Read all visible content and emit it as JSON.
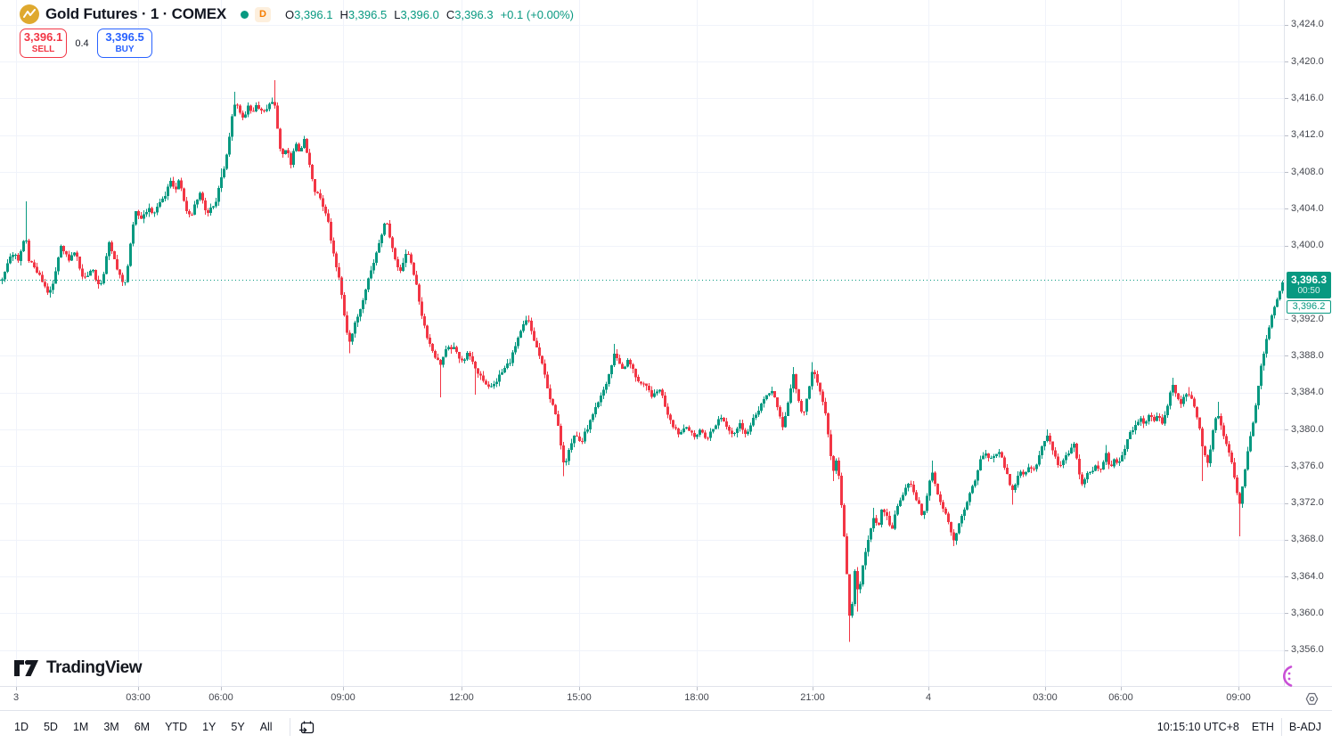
{
  "header": {
    "symbol_title": "Gold Futures · 1 · COMEX",
    "market_status_icon": "green-dot",
    "delayed_badge": "D",
    "ohlc": [
      {
        "label": "O",
        "value": "3,396.1"
      },
      {
        "label": "H",
        "value": "3,396.5"
      },
      {
        "label": "L",
        "value": "3,396.0"
      },
      {
        "label": "C",
        "value": "3,396.3"
      }
    ],
    "change": "+0.1 (+0.00%)"
  },
  "trade_panel": {
    "sell_price": "3,396.1",
    "sell_label": "SELL",
    "spread": "0.4",
    "buy_price": "3,396.5",
    "buy_label": "BUY"
  },
  "logo": {
    "text": "TradingView"
  },
  "badges": {
    "last_price": "3,396.3",
    "countdown": "00:50",
    "secondary_price": "3,396.2"
  },
  "toolbar": {
    "ranges": [
      "1D",
      "5D",
      "1M",
      "3M",
      "6M",
      "YTD",
      "1Y",
      "5Y",
      "All"
    ],
    "goto_date_icon": "calendar-arrow-icon",
    "clock": "10:15:10 UTC+8",
    "session": "ETH",
    "adjustment": "B-ADJ"
  },
  "colors": {
    "up": "#089981",
    "down": "#F23645",
    "sell": "#F23645",
    "buy": "#2962FF",
    "delayed": "#F57C00",
    "grid": "#F0F3FA",
    "border": "#E0E3EB",
    "axis_text": "#44474F",
    "magenta": "#C94FD6",
    "symbol_icon_bg": "#DFA92F"
  },
  "chart_data": {
    "type": "candlestick",
    "title": "Gold Futures 1 COMEX",
    "up_color": "#089981",
    "down_color": "#F23645",
    "last_price": 3396.3,
    "price_line": {
      "price": 3396.3,
      "style": "dotted",
      "color": "#089981"
    },
    "y_axis": {
      "price_at_top": 3426.7,
      "price_at_bottom": 3352.1,
      "ticks": [
        3424,
        3420,
        3416,
        3412,
        3408,
        3404,
        3400,
        3392,
        3388,
        3384,
        3380,
        3376,
        3372,
        3368,
        3364,
        3360,
        3356
      ]
    },
    "x_axis": {
      "labels": [
        [
          "3",
          18
        ],
        [
          "03:00",
          155
        ],
        [
          "06:00",
          248
        ],
        [
          "09:00",
          385
        ],
        [
          "12:00",
          518
        ],
        [
          "15:00",
          650
        ],
        [
          "18:00",
          782
        ],
        [
          "21:00",
          912
        ],
        [
          "4",
          1042
        ],
        [
          "03:00",
          1173
        ],
        [
          "06:00",
          1258
        ],
        [
          "09:00",
          1390
        ]
      ]
    },
    "path": [
      [
        0,
        3396.2
      ],
      [
        5,
        3397.0
      ],
      [
        10,
        3398.7
      ],
      [
        15,
        3399.2
      ],
      [
        20,
        3398.2
      ],
      [
        24,
        3399.8
      ],
      [
        28,
        3401.2
      ],
      [
        32,
        3398.6
      ],
      [
        38,
        3397.6
      ],
      [
        44,
        3396.6
      ],
      [
        50,
        3395.6
      ],
      [
        55,
        3394.6
      ],
      [
        60,
        3396.0
      ],
      [
        65,
        3398.5
      ],
      [
        68,
        3400.2
      ],
      [
        72,
        3399.0
      ],
      [
        78,
        3398.4
      ],
      [
        83,
        3399.4
      ],
      [
        88,
        3398.0
      ],
      [
        93,
        3396.4
      ],
      [
        98,
        3396.8
      ],
      [
        103,
        3397.6
      ],
      [
        108,
        3396.2
      ],
      [
        112,
        3395.2
      ],
      [
        117,
        3397.5
      ],
      [
        121,
        3400.5
      ],
      [
        125,
        3399.2
      ],
      [
        129,
        3398.2
      ],
      [
        134,
        3396.8
      ],
      [
        139,
        3395.2
      ],
      [
        143,
        3398.0
      ],
      [
        147,
        3401.0
      ],
      [
        152,
        3403.5
      ],
      [
        158,
        3403.0
      ],
      [
        165,
        3404.0
      ],
      [
        172,
        3403.5
      ],
      [
        178,
        3404.5
      ],
      [
        185,
        3405.5
      ],
      [
        192,
        3407.0
      ],
      [
        197,
        3406.0
      ],
      [
        200,
        3407.3
      ],
      [
        204,
        3405.5
      ],
      [
        209,
        3403.8
      ],
      [
        214,
        3403.0
      ],
      [
        218,
        3404.5
      ],
      [
        223,
        3405.8
      ],
      [
        228,
        3404.8
      ],
      [
        232,
        3403.2
      ],
      [
        237,
        3404.0
      ],
      [
        242,
        3405.0
      ],
      [
        248,
        3407.5
      ],
      [
        252,
        3408.5
      ],
      [
        256,
        3411.0
      ],
      [
        260,
        3414.0
      ],
      [
        264,
        3416.0
      ],
      [
        268,
        3414.5
      ],
      [
        273,
        3414.0
      ],
      [
        278,
        3415.0
      ],
      [
        283,
        3414.3
      ],
      [
        288,
        3415.3
      ],
      [
        293,
        3414.5
      ],
      [
        298,
        3414.8
      ],
      [
        303,
        3415.5
      ],
      [
        307,
        3416.2
      ],
      [
        311,
        3412.5
      ],
      [
        316,
        3409.5
      ],
      [
        321,
        3410.5
      ],
      [
        326,
        3409.0
      ],
      [
        331,
        3411.0
      ],
      [
        336,
        3410.0
      ],
      [
        341,
        3411.5
      ],
      [
        346,
        3409.0
      ],
      [
        351,
        3406.5
      ],
      [
        356,
        3405.5
      ],
      [
        361,
        3404.5
      ],
      [
        366,
        3403.5
      ],
      [
        371,
        3400.5
      ],
      [
        376,
        3398.0
      ],
      [
        381,
        3396.0
      ],
      [
        386,
        3392.5
      ],
      [
        391,
        3389.5
      ],
      [
        395,
        3390.5
      ],
      [
        400,
        3392.0
      ],
      [
        405,
        3393.5
      ],
      [
        410,
        3395.5
      ],
      [
        415,
        3397.0
      ],
      [
        420,
        3398.5
      ],
      [
        425,
        3400.5
      ],
      [
        430,
        3402.0
      ],
      [
        434,
        3402.6
      ],
      [
        438,
        3400.5
      ],
      [
        443,
        3398.5
      ],
      [
        448,
        3397.2
      ],
      [
        452,
        3398.2
      ],
      [
        457,
        3399.3
      ],
      [
        462,
        3398.0
      ],
      [
        468,
        3395.0
      ],
      [
        473,
        3392.5
      ],
      [
        478,
        3390.5
      ],
      [
        483,
        3389.0
      ],
      [
        488,
        3388.0
      ],
      [
        493,
        3387.0
      ],
      [
        500,
        3388.5
      ],
      [
        507,
        3389.0
      ],
      [
        514,
        3388.0
      ],
      [
        520,
        3387.5
      ],
      [
        526,
        3388.5
      ],
      [
        532,
        3386.5
      ],
      [
        538,
        3386.0
      ],
      [
        545,
        3385.0
      ],
      [
        552,
        3384.5
      ],
      [
        558,
        3385.5
      ],
      [
        565,
        3386.5
      ],
      [
        572,
        3387.5
      ],
      [
        580,
        3389.5
      ],
      [
        588,
        3391.5
      ],
      [
        592,
        3392.0
      ],
      [
        598,
        3390.0
      ],
      [
        605,
        3388.0
      ],
      [
        612,
        3385.5
      ],
      [
        618,
        3383.0
      ],
      [
        624,
        3381.3
      ],
      [
        629,
        3378.5
      ],
      [
        633,
        3376.0
      ],
      [
        638,
        3378.0
      ],
      [
        645,
        3379.5
      ],
      [
        652,
        3378.5
      ],
      [
        658,
        3380.0
      ],
      [
        665,
        3381.5
      ],
      [
        672,
        3383.0
      ],
      [
        680,
        3385.0
      ],
      [
        686,
        3387.0
      ],
      [
        690,
        3388.5
      ],
      [
        697,
        3386.5
      ],
      [
        705,
        3387.5
      ],
      [
        712,
        3386.0
      ],
      [
        718,
        3385.0
      ],
      [
        725,
        3384.5
      ],
      [
        733,
        3383.5
      ],
      [
        740,
        3384.5
      ],
      [
        748,
        3382.0
      ],
      [
        755,
        3380.5
      ],
      [
        762,
        3379.5
      ],
      [
        770,
        3380.5
      ],
      [
        778,
        3379.0
      ],
      [
        785,
        3380.0
      ],
      [
        792,
        3379.0
      ],
      [
        800,
        3380.0
      ],
      [
        808,
        3381.5
      ],
      [
        815,
        3380.5
      ],
      [
        822,
        3379.5
      ],
      [
        830,
        3380.5
      ],
      [
        838,
        3379.5
      ],
      [
        845,
        3381.0
      ],
      [
        852,
        3382.5
      ],
      [
        860,
        3383.5
      ],
      [
        867,
        3384.4
      ],
      [
        874,
        3381.5
      ],
      [
        878,
        3380.2
      ],
      [
        885,
        3383.5
      ],
      [
        890,
        3386.0
      ],
      [
        896,
        3383.0
      ],
      [
        901,
        3381.5
      ],
      [
        906,
        3383.5
      ],
      [
        912,
        3386.8
      ],
      [
        918,
        3384.5
      ],
      [
        924,
        3383.0
      ],
      [
        928,
        3380.0
      ],
      [
        932,
        3377.0
      ],
      [
        936,
        3375.3
      ],
      [
        939,
        3377.5
      ],
      [
        942,
        3374.0
      ],
      [
        945,
        3370.5
      ],
      [
        948,
        3367.0
      ],
      [
        951,
        3362.5
      ],
      [
        954,
        3358.5
      ],
      [
        957,
        3362.0
      ],
      [
        960,
        3365.5
      ],
      [
        963,
        3361.5
      ],
      [
        966,
        3364.0
      ],
      [
        970,
        3366.5
      ],
      [
        975,
        3368.5
      ],
      [
        980,
        3370.5
      ],
      [
        985,
        3369.0
      ],
      [
        990,
        3371.5
      ],
      [
        995,
        3370.5
      ],
      [
        1000,
        3369.0
      ],
      [
        1005,
        3371.0
      ],
      [
        1010,
        3372.5
      ],
      [
        1015,
        3373.5
      ],
      [
        1020,
        3374.5
      ],
      [
        1025,
        3373.0
      ],
      [
        1030,
        3372.0
      ],
      [
        1035,
        3370.5
      ],
      [
        1040,
        3372.5
      ],
      [
        1045,
        3376.0
      ],
      [
        1050,
        3373.5
      ],
      [
        1055,
        3372.0
      ],
      [
        1060,
        3371.0
      ],
      [
        1065,
        3369.5
      ],
      [
        1070,
        3368.0
      ],
      [
        1075,
        3369.5
      ],
      [
        1080,
        3371.0
      ],
      [
        1085,
        3372.0
      ],
      [
        1090,
        3373.5
      ],
      [
        1095,
        3375.0
      ],
      [
        1100,
        3376.5
      ],
      [
        1105,
        3377.5
      ],
      [
        1110,
        3376.5
      ],
      [
        1115,
        3377.0
      ],
      [
        1120,
        3377.5
      ],
      [
        1125,
        3376.5
      ],
      [
        1130,
        3375.0
      ],
      [
        1135,
        3373.0
      ],
      [
        1140,
        3374.5
      ],
      [
        1145,
        3375.5
      ],
      [
        1150,
        3375.0
      ],
      [
        1155,
        3376.0
      ],
      [
        1160,
        3375.5
      ],
      [
        1165,
        3377.0
      ],
      [
        1170,
        3378.5
      ],
      [
        1175,
        3379.5
      ],
      [
        1180,
        3378.0
      ],
      [
        1185,
        3376.5
      ],
      [
        1190,
        3376.0
      ],
      [
        1195,
        3377.0
      ],
      [
        1200,
        3377.5
      ],
      [
        1205,
        3378.5
      ],
      [
        1210,
        3375.5
      ],
      [
        1215,
        3374.0
      ],
      [
        1220,
        3375.0
      ],
      [
        1225,
        3375.5
      ],
      [
        1230,
        3376.0
      ],
      [
        1235,
        3375.5
      ],
      [
        1240,
        3377.5
      ],
      [
        1245,
        3376.0
      ],
      [
        1250,
        3376.5
      ],
      [
        1255,
        3376.0
      ],
      [
        1260,
        3377.5
      ],
      [
        1265,
        3379.0
      ],
      [
        1270,
        3380.0
      ],
      [
        1275,
        3380.5
      ],
      [
        1280,
        3381.0
      ],
      [
        1285,
        3380.5
      ],
      [
        1290,
        3381.5
      ],
      [
        1295,
        3381.0
      ],
      [
        1300,
        3381.5
      ],
      [
        1305,
        3380.5
      ],
      [
        1310,
        3382.5
      ],
      [
        1315,
        3385.0
      ],
      [
        1320,
        3383.5
      ],
      [
        1325,
        3383.0
      ],
      [
        1330,
        3383.5
      ],
      [
        1335,
        3384.0
      ],
      [
        1340,
        3382.5
      ],
      [
        1345,
        3380.5
      ],
      [
        1350,
        3377.5
      ],
      [
        1355,
        3376.5
      ],
      [
        1358,
        3378.0
      ],
      [
        1362,
        3380.5
      ],
      [
        1366,
        3382.0
      ],
      [
        1370,
        3380.5
      ],
      [
        1374,
        3379.0
      ],
      [
        1378,
        3378.0
      ],
      [
        1382,
        3376.5
      ],
      [
        1386,
        3374.5
      ],
      [
        1390,
        3371.5
      ],
      [
        1394,
        3374.0
      ],
      [
        1398,
        3376.5
      ],
      [
        1402,
        3378.5
      ],
      [
        1406,
        3380.5
      ],
      [
        1410,
        3383.5
      ],
      [
        1414,
        3386.5
      ],
      [
        1418,
        3388.0
      ],
      [
        1422,
        3390.5
      ],
      [
        1426,
        3392.0
      ],
      [
        1430,
        3393.5
      ],
      [
        1434,
        3394.5
      ],
      [
        1438,
        3395.5
      ],
      [
        1441,
        3396.3
      ]
    ],
    "spikes": [
      [
        28,
        3404.8
      ],
      [
        248,
        3408.4
      ],
      [
        264,
        3416.7
      ],
      [
        307,
        3418.0
      ],
      [
        391,
        3388.3
      ],
      [
        493,
        3383.5
      ],
      [
        532,
        3383.8
      ],
      [
        592,
        3392.4
      ],
      [
        633,
        3374.9
      ],
      [
        690,
        3389.3
      ],
      [
        890,
        3386.8
      ],
      [
        912,
        3387.3
      ],
      [
        936,
        3374.4
      ],
      [
        954,
        3356.9
      ],
      [
        963,
        3360.2
      ],
      [
        980,
        3371.5
      ],
      [
        1045,
        3376.6
      ],
      [
        1070,
        3367.3
      ],
      [
        1135,
        3371.8
      ],
      [
        1175,
        3380.0
      ],
      [
        1240,
        3378.3
      ],
      [
        1315,
        3385.6
      ],
      [
        1335,
        3384.6
      ],
      [
        1350,
        3374.4
      ],
      [
        1366,
        3383.0
      ],
      [
        1390,
        3368.4
      ],
      [
        1441,
        3396.5
      ]
    ]
  }
}
